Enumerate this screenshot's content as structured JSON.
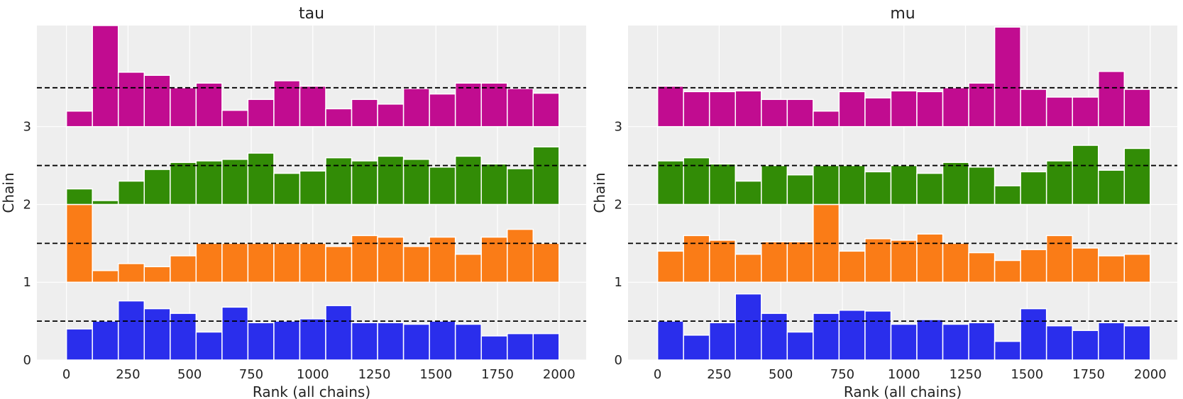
{
  "colors": {
    "background": "#eeeeee",
    "grid": "#ffffff",
    "chains": [
      "#2a2eec",
      "#fa7c17",
      "#328c06",
      "#c10c90"
    ],
    "reference_line": "#000000"
  },
  "chart_data": [
    {
      "type": "bar",
      "title": "tau",
      "xlabel": "Rank (all chains)",
      "ylabel": "Chain",
      "xlim": [
        -120,
        2110
      ],
      "ylim": [
        0,
        4.3
      ],
      "xticks": [
        "0",
        "250",
        "500",
        "750",
        "1000",
        "1250",
        "1500",
        "1750",
        "2000"
      ],
      "yticks": [
        "0",
        "1",
        "2",
        "3"
      ],
      "grid": true,
      "bin_edges": [
        0,
        105.3,
        210.5,
        315.8,
        421.1,
        526.3,
        631.6,
        736.8,
        842.1,
        947.4,
        1052.6,
        1157.9,
        1263.2,
        1368.4,
        1473.7,
        1578.9,
        1684.2,
        1789.5,
        1894.7,
        2000
      ],
      "reference_lines": [
        0.5,
        1.5,
        2.5,
        3.5
      ],
      "series": [
        {
          "chain": 0,
          "values": [
            0.4,
            0.5,
            0.76,
            0.66,
            0.6,
            0.36,
            0.68,
            0.48,
            0.5,
            0.53,
            0.7,
            0.48,
            0.48,
            0.46,
            0.5,
            0.46,
            0.31,
            0.34,
            0.34
          ]
        },
        {
          "chain": 1,
          "values": [
            1.0,
            0.15,
            0.24,
            0.2,
            0.34,
            0.5,
            0.5,
            0.5,
            0.5,
            0.5,
            0.46,
            0.6,
            0.58,
            0.46,
            0.58,
            0.36,
            0.58,
            0.68,
            0.5
          ]
        },
        {
          "chain": 2,
          "values": [
            0.2,
            0.05,
            0.3,
            0.45,
            0.54,
            0.56,
            0.58,
            0.66,
            0.4,
            0.43,
            0.6,
            0.56,
            0.62,
            0.58,
            0.48,
            0.62,
            0.52,
            0.46,
            0.74
          ]
        },
        {
          "chain": 3,
          "values": [
            0.2,
            1.3,
            0.7,
            0.66,
            0.5,
            0.56,
            0.21,
            0.35,
            0.59,
            0.52,
            0.23,
            0.35,
            0.29,
            0.49,
            0.42,
            0.56,
            0.56,
            0.49,
            0.43
          ]
        }
      ]
    },
    {
      "type": "bar",
      "title": "mu",
      "xlabel": "Rank (all chains)",
      "ylabel": "Chain",
      "xlim": [
        -120,
        2110
      ],
      "ylim": [
        0,
        4.3
      ],
      "xticks": [
        "0",
        "250",
        "500",
        "750",
        "1000",
        "1250",
        "1500",
        "1750",
        "2000"
      ],
      "yticks": [
        "0",
        "1",
        "2",
        "3"
      ],
      "grid": true,
      "bin_edges": [
        0,
        105.3,
        210.5,
        315.8,
        421.1,
        526.3,
        631.6,
        736.8,
        842.1,
        947.4,
        1052.6,
        1157.9,
        1263.2,
        1368.4,
        1473.7,
        1578.9,
        1684.2,
        1789.5,
        1894.7,
        2000
      ],
      "reference_lines": [
        0.5,
        1.5,
        2.5,
        3.5
      ],
      "series": [
        {
          "chain": 0,
          "values": [
            0.5,
            0.32,
            0.48,
            0.85,
            0.6,
            0.36,
            0.6,
            0.64,
            0.63,
            0.46,
            0.52,
            0.46,
            0.48,
            0.24,
            0.66,
            0.44,
            0.38,
            0.48,
            0.44
          ]
        },
        {
          "chain": 1,
          "values": [
            0.4,
            0.6,
            0.54,
            0.36,
            0.52,
            0.52,
            1.0,
            0.4,
            0.56,
            0.54,
            0.62,
            0.5,
            0.38,
            0.28,
            0.42,
            0.6,
            0.44,
            0.34,
            0.36
          ]
        },
        {
          "chain": 2,
          "values": [
            0.56,
            0.6,
            0.52,
            0.3,
            0.5,
            0.38,
            0.5,
            0.5,
            0.42,
            0.5,
            0.4,
            0.54,
            0.48,
            0.24,
            0.42,
            0.56,
            0.76,
            0.44,
            0.72
          ]
        },
        {
          "chain": 3,
          "values": [
            0.52,
            0.45,
            0.45,
            0.46,
            0.35,
            0.35,
            0.2,
            0.45,
            0.37,
            0.46,
            0.45,
            0.5,
            0.56,
            1.28,
            0.48,
            0.38,
            0.38,
            0.71,
            0.48
          ]
        }
      ]
    }
  ]
}
